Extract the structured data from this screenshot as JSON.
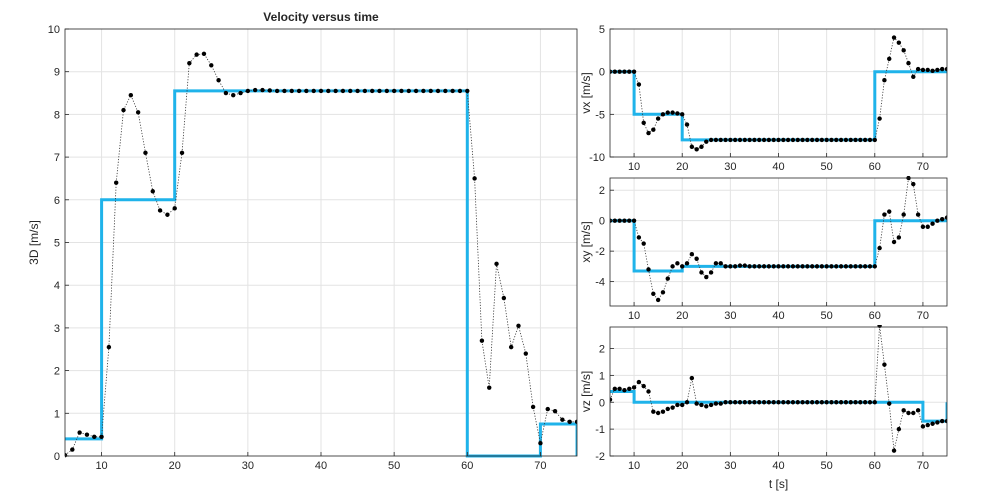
{
  "chart_data": [
    {
      "type": "line",
      "title": "Velocity versus time",
      "xlabel": "",
      "ylabel": "3D [m/s]",
      "xlim": [
        5,
        75
      ],
      "ylim": [
        0,
        10
      ],
      "xticks": [
        10,
        20,
        30,
        40,
        50,
        60,
        70
      ],
      "yticks": [
        0,
        1,
        2,
        3,
        4,
        5,
        6,
        7,
        8,
        9,
        10
      ],
      "grid": true,
      "colors": {
        "step": "#1fb3ea",
        "dots": "#000000"
      },
      "step_series": {
        "x": [
          5,
          10,
          10,
          20,
          20,
          60,
          60,
          70,
          70,
          75,
          75
        ],
        "y": [
          0.4,
          0.4,
          6.0,
          6.0,
          8.55,
          8.55,
          0.0,
          0.0,
          0.75,
          0.75,
          0.0
        ]
      },
      "dot_series": {
        "x": [
          5,
          6,
          7,
          8,
          9,
          10,
          11,
          12,
          13,
          14,
          15,
          16,
          17,
          18,
          19,
          20,
          21,
          22,
          23,
          24,
          25,
          26,
          27,
          28,
          29,
          30,
          31,
          32,
          33,
          34,
          35,
          36,
          37,
          38,
          39,
          40,
          41,
          42,
          43,
          44,
          45,
          46,
          47,
          48,
          49,
          50,
          51,
          52,
          53,
          54,
          55,
          56,
          57,
          58,
          59,
          60,
          61,
          62,
          63,
          64,
          65,
          66,
          67,
          68,
          69,
          70,
          71,
          72,
          73,
          74,
          75
        ],
        "y": [
          0.02,
          0.15,
          0.55,
          0.5,
          0.45,
          0.45,
          2.55,
          6.4,
          8.1,
          8.45,
          8.05,
          7.1,
          6.2,
          5.75,
          5.65,
          5.8,
          7.1,
          9.2,
          9.4,
          9.42,
          9.15,
          8.8,
          8.5,
          8.45,
          8.5,
          8.55,
          8.57,
          8.57,
          8.56,
          8.55,
          8.55,
          8.55,
          8.55,
          8.55,
          8.55,
          8.55,
          8.55,
          8.55,
          8.55,
          8.55,
          8.55,
          8.55,
          8.55,
          8.55,
          8.55,
          8.55,
          8.55,
          8.55,
          8.55,
          8.55,
          8.55,
          8.55,
          8.55,
          8.55,
          8.55,
          8.55,
          6.5,
          2.7,
          1.6,
          4.5,
          3.7,
          2.55,
          3.05,
          2.4,
          1.15,
          0.3,
          1.1,
          1.05,
          0.85,
          0.8,
          0.8
        ]
      }
    },
    {
      "type": "line",
      "title": "",
      "xlabel": "",
      "ylabel": "vx [m/s]",
      "xlim": [
        5,
        75
      ],
      "ylim": [
        -10,
        5
      ],
      "xticks": [
        10,
        20,
        30,
        40,
        50,
        60,
        70
      ],
      "yticks": [
        -10,
        -5,
        0,
        5
      ],
      "grid": true,
      "colors": {
        "step": "#1fb3ea",
        "dots": "#000000"
      },
      "step_series": {
        "x": [
          5,
          10,
          10,
          20,
          20,
          60,
          60,
          75
        ],
        "y": [
          0,
          0,
          -5,
          -5,
          -8,
          -8,
          0,
          0
        ]
      },
      "dot_series": {
        "x": [
          5,
          6,
          7,
          8,
          9,
          10,
          11,
          12,
          13,
          14,
          15,
          16,
          17,
          18,
          19,
          20,
          21,
          22,
          23,
          24,
          25,
          26,
          27,
          28,
          29,
          30,
          31,
          32,
          33,
          34,
          35,
          36,
          37,
          38,
          39,
          40,
          41,
          42,
          43,
          44,
          45,
          46,
          47,
          48,
          49,
          50,
          51,
          52,
          53,
          54,
          55,
          56,
          57,
          58,
          59,
          60,
          61,
          62,
          63,
          64,
          65,
          66,
          67,
          68,
          69,
          70,
          71,
          72,
          73,
          74,
          75
        ],
        "y": [
          0,
          0,
          0,
          0,
          0,
          0,
          -1.5,
          -6,
          -7.2,
          -6.8,
          -5.5,
          -5,
          -4.8,
          -4.8,
          -4.9,
          -5,
          -6.2,
          -8.8,
          -9.1,
          -8.8,
          -8.2,
          -8,
          -8,
          -8,
          -8,
          -8,
          -8,
          -8,
          -8,
          -8,
          -8,
          -8,
          -8,
          -8,
          -8,
          -8,
          -8,
          -8,
          -8,
          -8,
          -8,
          -8,
          -8,
          -8,
          -8,
          -8,
          -8,
          -8,
          -8,
          -8,
          -8,
          -8,
          -8,
          -8,
          -8,
          -8,
          -5.5,
          -1.0,
          1.5,
          4.0,
          3.4,
          2.5,
          1.0,
          -0.6,
          0.3,
          0.2,
          0.2,
          0.1,
          0.2,
          0.3,
          0.3
        ]
      }
    },
    {
      "type": "line",
      "title": "",
      "xlabel": "",
      "ylabel": "xy [m/s]",
      "xlim": [
        5,
        75
      ],
      "ylim": [
        -5.6,
        2.8
      ],
      "xticks": [
        10,
        20,
        30,
        40,
        50,
        60,
        70
      ],
      "yticks": [
        -4,
        -2,
        0,
        2
      ],
      "grid": true,
      "colors": {
        "step": "#1fb3ea",
        "dots": "#000000"
      },
      "step_series": {
        "x": [
          5,
          10,
          10,
          20,
          20,
          60,
          60,
          75
        ],
        "y": [
          0,
          0,
          -3.3,
          -3.3,
          -3.0,
          -3.0,
          0,
          0
        ]
      },
      "dot_series": {
        "x": [
          5,
          6,
          7,
          8,
          9,
          10,
          11,
          12,
          13,
          14,
          15,
          16,
          17,
          18,
          19,
          20,
          21,
          22,
          23,
          24,
          25,
          26,
          27,
          28,
          29,
          30,
          31,
          32,
          33,
          34,
          35,
          36,
          37,
          38,
          39,
          40,
          41,
          42,
          43,
          44,
          45,
          46,
          47,
          48,
          49,
          50,
          51,
          52,
          53,
          54,
          55,
          56,
          57,
          58,
          59,
          60,
          61,
          62,
          63,
          64,
          65,
          66,
          67,
          68,
          69,
          70,
          71,
          72,
          73,
          74,
          75
        ],
        "y": [
          0,
          0,
          0,
          0,
          0,
          0,
          -1.1,
          -1.5,
          -3.2,
          -4.8,
          -5.2,
          -4.7,
          -3.8,
          -3.0,
          -2.8,
          -3.0,
          -2.8,
          -2.2,
          -2.5,
          -3.4,
          -3.7,
          -3.4,
          -2.8,
          -2.8,
          -3.0,
          -3.0,
          -3.0,
          -2.95,
          -2.95,
          -3.0,
          -3.0,
          -3.0,
          -3.0,
          -3.0,
          -3.0,
          -3.0,
          -3.0,
          -3.0,
          -3.0,
          -3.0,
          -3.0,
          -3.0,
          -3.0,
          -3.0,
          -3.0,
          -3.0,
          -3.0,
          -3.0,
          -3.0,
          -3.0,
          -3.0,
          -3.0,
          -3.0,
          -3.0,
          -3.0,
          -3.0,
          -1.8,
          0.4,
          0.6,
          -1.4,
          -1.1,
          0.4,
          2.8,
          2.4,
          0.4,
          -0.4,
          -0.4,
          -0.2,
          0,
          0.1,
          0.2
        ]
      }
    },
    {
      "type": "line",
      "title": "",
      "xlabel": "t [s]",
      "ylabel": "vz [m/s]",
      "xlim": [
        5,
        75
      ],
      "ylim": [
        -2,
        2.8
      ],
      "xticks": [
        10,
        20,
        30,
        40,
        50,
        60,
        70
      ],
      "yticks": [
        -2,
        -1,
        0,
        1,
        2
      ],
      "grid": true,
      "colors": {
        "step": "#1fb3ea",
        "dots": "#000000"
      },
      "step_series": {
        "x": [
          5,
          10,
          10,
          70,
          70,
          75,
          75
        ],
        "y": [
          0.4,
          0.4,
          0,
          0,
          -0.7,
          -0.7,
          0
        ]
      },
      "dot_series": {
        "x": [
          5,
          6,
          7,
          8,
          9,
          10,
          11,
          12,
          13,
          14,
          15,
          16,
          17,
          18,
          19,
          20,
          21,
          22,
          23,
          24,
          25,
          26,
          27,
          28,
          29,
          30,
          31,
          32,
          33,
          34,
          35,
          36,
          37,
          38,
          39,
          40,
          41,
          42,
          43,
          44,
          45,
          46,
          47,
          48,
          49,
          50,
          51,
          52,
          53,
          54,
          55,
          56,
          57,
          58,
          59,
          60,
          61,
          62,
          63,
          64,
          65,
          66,
          67,
          68,
          69,
          70,
          71,
          72,
          73,
          74,
          75
        ],
        "y": [
          0.1,
          0.5,
          0.5,
          0.45,
          0.5,
          0.55,
          0.75,
          0.6,
          0.4,
          -0.35,
          -0.4,
          -0.35,
          -0.25,
          -0.2,
          -0.1,
          -0.1,
          0,
          0.9,
          -0.05,
          -0.1,
          -0.15,
          -0.1,
          -0.05,
          -0.05,
          0,
          0,
          0,
          0,
          0,
          0,
          0,
          0,
          0,
          0,
          0,
          0,
          0,
          0,
          0,
          0,
          0,
          0,
          0,
          0,
          0,
          0,
          0,
          0,
          0,
          0,
          0,
          0,
          0,
          0,
          0,
          0,
          2.85,
          1.4,
          -0.05,
          -1.8,
          -1.0,
          -0.3,
          -0.4,
          -0.4,
          -0.3,
          -0.9,
          -0.85,
          -0.8,
          -0.75,
          -0.7,
          -0.7
        ]
      }
    }
  ]
}
